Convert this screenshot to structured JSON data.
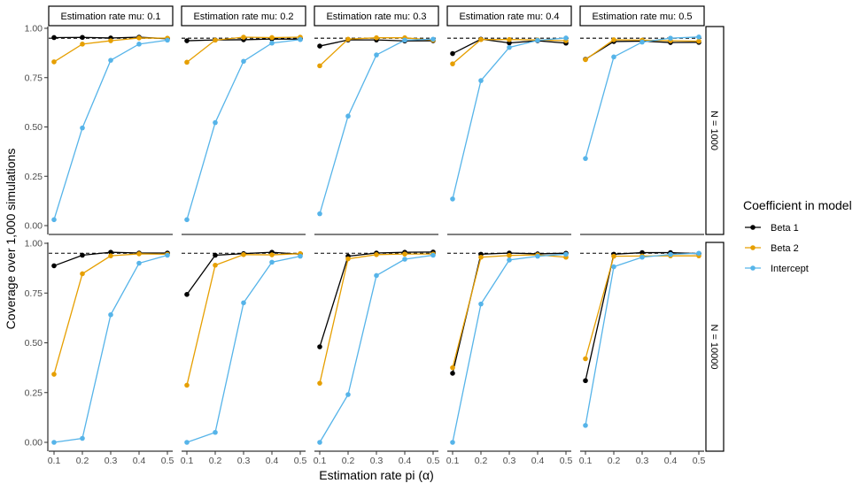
{
  "chart_data": {
    "type": "line",
    "xlabel": "Estimation rate pi (α)",
    "ylabel": "Coverage over 1,000 simulations",
    "x": [
      0.1,
      0.2,
      0.3,
      0.4,
      0.5
    ],
    "x_tick_labels": [
      "0.1",
      "0.2",
      "0.3",
      "0.4",
      "0.5"
    ],
    "ylim": [
      0,
      1
    ],
    "y_ticks": [
      0,
      0.25,
      0.5,
      0.75,
      1
    ],
    "y_tick_labels": [
      "0.00",
      "0.25",
      "0.50",
      "0.75",
      "1.00"
    ],
    "reference_line": 0.95,
    "grid": false,
    "legend": {
      "title": "Coefficient in model",
      "position": "right",
      "entries": [
        {
          "name": "Beta 1",
          "color": "#000000"
        },
        {
          "name": "Beta 2",
          "color": "#E69F00"
        },
        {
          "name": "Intercept",
          "color": "#56B4E9"
        }
      ]
    },
    "column_labels": [
      "Estimation rate mu: 0.1",
      "Estimation rate mu: 0.2",
      "Estimation rate mu: 0.3",
      "Estimation rate mu: 0.4",
      "Estimation rate mu: 0.5"
    ],
    "row_labels": [
      "N = 1000",
      "N = 10000"
    ],
    "panels": [
      [
        {
          "series": [
            {
              "name": "Beta 1",
              "values": [
                0.953,
                0.954,
                0.951,
                0.955,
                0.947
              ]
            },
            {
              "name": "Beta 2",
              "values": [
                0.83,
                0.92,
                0.937,
                0.951,
                0.95
              ]
            },
            {
              "name": "Intercept",
              "values": [
                0.03,
                0.495,
                0.838,
                0.92,
                0.94
              ]
            }
          ]
        },
        {
          "series": [
            {
              "name": "Beta 1",
              "values": [
                0.937,
                0.941,
                0.942,
                0.946,
                0.945
              ]
            },
            {
              "name": "Beta 2",
              "values": [
                0.828,
                0.94,
                0.955,
                0.953,
                0.955
              ]
            },
            {
              "name": "Intercept",
              "values": [
                0.03,
                0.522,
                0.833,
                0.925,
                0.943
              ]
            }
          ]
        },
        {
          "series": [
            {
              "name": "Beta 1",
              "values": [
                0.91,
                0.941,
                0.941,
                0.936,
                0.937
              ]
            },
            {
              "name": "Beta 2",
              "values": [
                0.81,
                0.945,
                0.952,
                0.952,
                0.94
              ]
            },
            {
              "name": "Intercept",
              "values": [
                0.06,
                0.555,
                0.865,
                0.94,
                0.945
              ]
            }
          ]
        },
        {
          "series": [
            {
              "name": "Beta 1",
              "values": [
                0.872,
                0.945,
                0.926,
                0.937,
                0.925
              ]
            },
            {
              "name": "Beta 2",
              "values": [
                0.82,
                0.943,
                0.943,
                0.941,
                0.937
              ]
            },
            {
              "name": "Intercept",
              "values": [
                0.135,
                0.735,
                0.903,
                0.939,
                0.951
              ]
            }
          ]
        },
        {
          "series": [
            {
              "name": "Beta 1",
              "values": [
                0.843,
                0.933,
                0.935,
                0.928,
                0.929
              ]
            },
            {
              "name": "Beta 2",
              "values": [
                0.841,
                0.942,
                0.94,
                0.937,
                0.935
              ]
            },
            {
              "name": "Intercept",
              "values": [
                0.34,
                0.855,
                0.93,
                0.95,
                0.956
              ]
            }
          ]
        }
      ],
      [
        {
          "series": [
            {
              "name": "Beta 1",
              "values": [
                0.887,
                0.94,
                0.955,
                0.951,
                0.951
              ]
            },
            {
              "name": "Beta 2",
              "values": [
                0.342,
                0.847,
                0.937,
                0.947,
                0.945
              ]
            },
            {
              "name": "Intercept",
              "values": [
                0.0,
                0.02,
                0.641,
                0.9,
                0.94
              ]
            }
          ]
        },
        {
          "series": [
            {
              "name": "Beta 1",
              "values": [
                0.743,
                0.94,
                0.948,
                0.955,
                0.945
              ]
            },
            {
              "name": "Beta 2",
              "values": [
                0.287,
                0.89,
                0.943,
                0.942,
                0.948
              ]
            },
            {
              "name": "Intercept",
              "values": [
                0.0,
                0.05,
                0.701,
                0.905,
                0.935
              ]
            }
          ]
        },
        {
          "series": [
            {
              "name": "Beta 1",
              "values": [
                0.48,
                0.935,
                0.951,
                0.955,
                0.956
              ]
            },
            {
              "name": "Beta 2",
              "values": [
                0.297,
                0.922,
                0.943,
                0.946,
                0.946
              ]
            },
            {
              "name": "Intercept",
              "values": [
                0.0,
                0.24,
                0.838,
                0.92,
                0.94
              ]
            }
          ]
        },
        {
          "series": [
            {
              "name": "Beta 1",
              "values": [
                0.347,
                0.945,
                0.951,
                0.947,
                0.95
              ]
            },
            {
              "name": "Beta 2",
              "values": [
                0.375,
                0.93,
                0.939,
                0.942,
                0.93
              ]
            },
            {
              "name": "Intercept",
              "values": [
                0.0,
                0.695,
                0.916,
                0.935,
                0.945
              ]
            }
          ]
        },
        {
          "series": [
            {
              "name": "Beta 1",
              "values": [
                0.31,
                0.945,
                0.953,
                0.953,
                0.948
              ]
            },
            {
              "name": "Beta 2",
              "values": [
                0.42,
                0.935,
                0.936,
                0.937,
                0.937
              ]
            },
            {
              "name": "Intercept",
              "values": [
                0.085,
                0.882,
                0.93,
                0.944,
                0.95
              ]
            }
          ]
        }
      ]
    ]
  }
}
